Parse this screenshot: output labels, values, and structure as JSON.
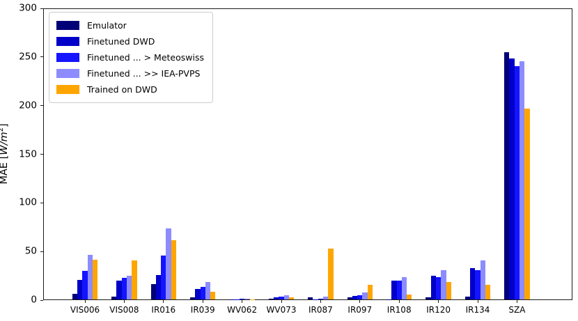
{
  "chart_data": {
    "type": "bar",
    "title": "",
    "xlabel": "",
    "ylabel": "MAE [W/m^2]",
    "ylabel_parts": {
      "prefix": "MAE [",
      "math_italic": "W/m",
      "superscript": "2",
      "suffix": "]"
    },
    "ylim": [
      0,
      300
    ],
    "yticks": [
      0,
      50,
      100,
      150,
      200,
      250,
      300
    ],
    "grid": false,
    "legend_position": "upper left",
    "categories": [
      "VIS006",
      "VIS008",
      "IR016",
      "IR039",
      "WV062",
      "WV073",
      "IR087",
      "IR097",
      "IR108",
      "IR120",
      "IR134",
      "SZA"
    ],
    "series": [
      {
        "name": "Emulator",
        "color": "#000077",
        "values": [
          6,
          3,
          16,
          2,
          0.3,
          0.5,
          2,
          2.5,
          0.3,
          2,
          3,
          254
        ]
      },
      {
        "name": "Finetuned DWD",
        "color": "#0000c8",
        "values": [
          20,
          19,
          25,
          11,
          0.3,
          2.5,
          0.3,
          3.5,
          19,
          24,
          32,
          248
        ]
      },
      {
        "name": "Finetuned ... > Meteoswiss",
        "color": "#1414ff",
        "values": [
          29,
          22,
          45,
          13,
          0.4,
          3,
          1,
          4.5,
          19,
          23,
          30,
          240
        ]
      },
      {
        "name": "Finetuned ... >> IEA-PVPS",
        "color": "#8c8cff",
        "values": [
          46,
          24,
          73,
          18,
          0.5,
          4,
          3,
          7.5,
          23,
          30,
          40,
          245
        ]
      },
      {
        "name": "Trained on DWD",
        "color": "#ffa500",
        "values": [
          41,
          40,
          61,
          8,
          0.3,
          2,
          52,
          15,
          5,
          18,
          15,
          196
        ]
      }
    ]
  }
}
